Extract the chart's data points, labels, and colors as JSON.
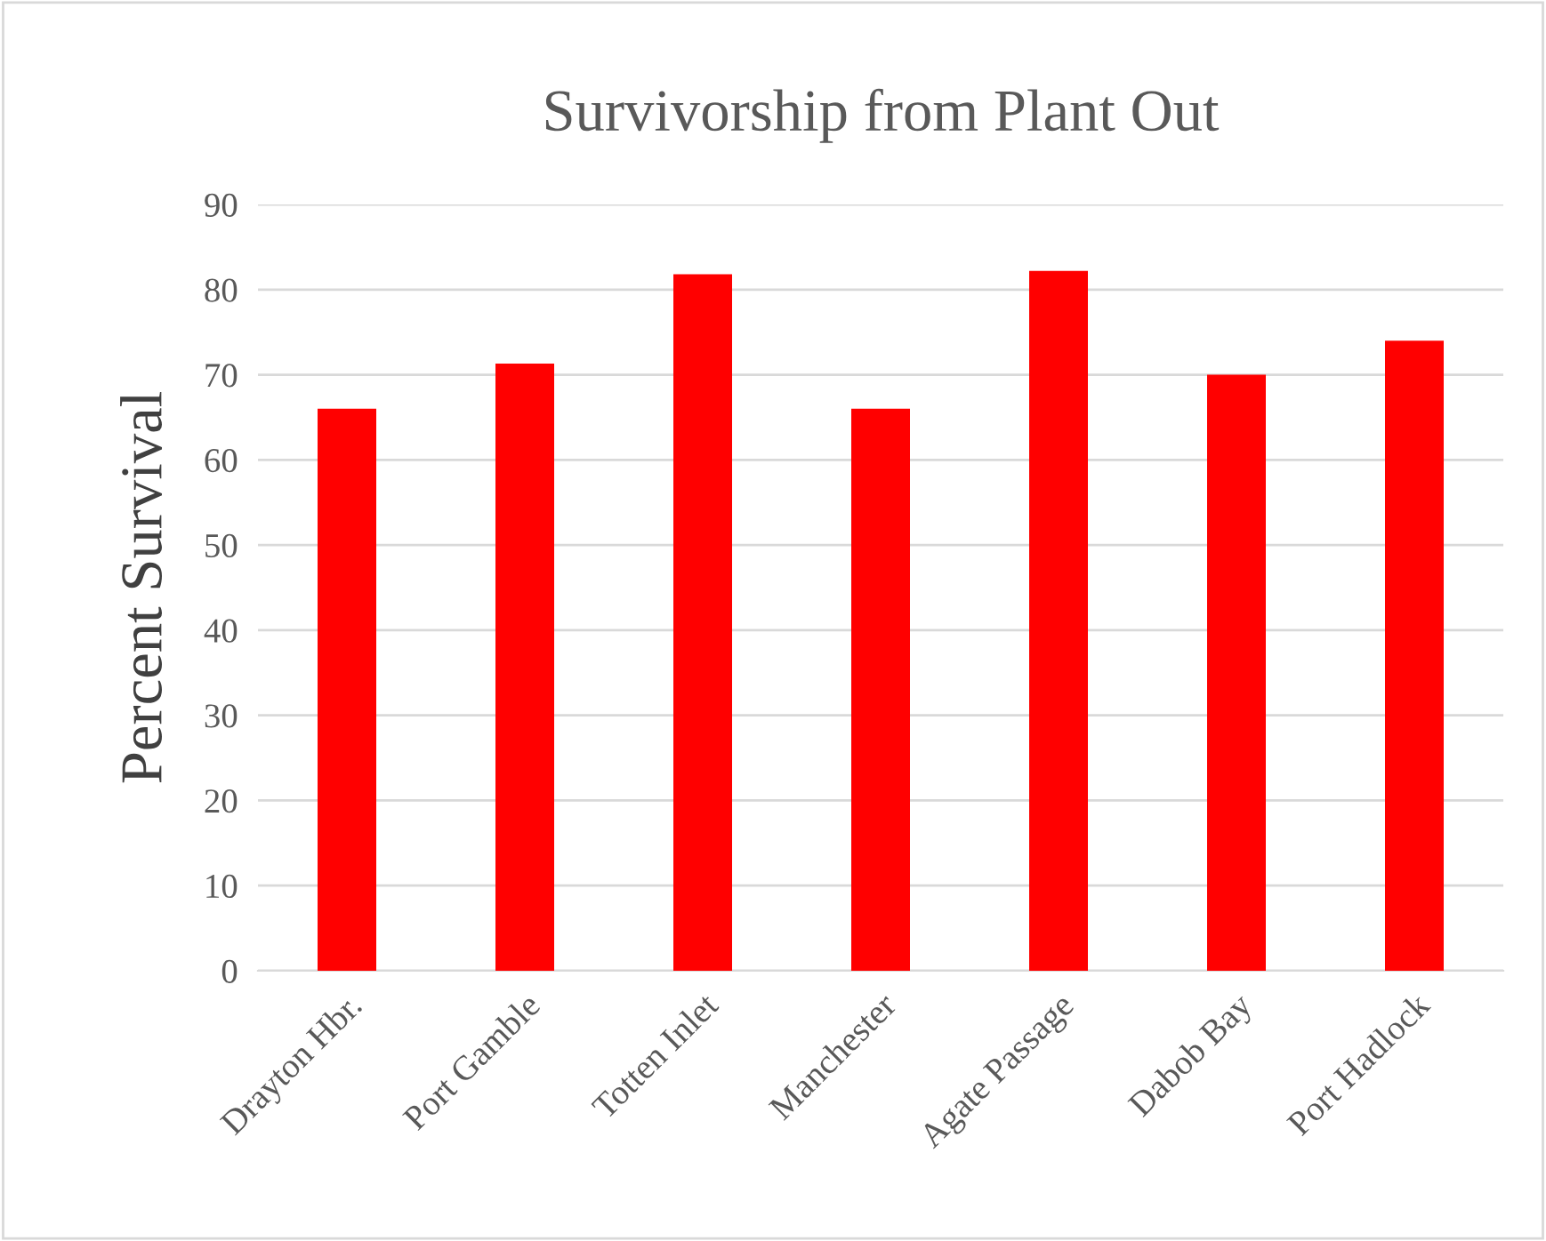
{
  "chart_data": {
    "type": "bar",
    "title": "Survivorship from Plant Out",
    "ylabel": "Percent Survival",
    "categories": [
      "Drayton Hbr.",
      "Port Gamble",
      "Totten Inlet",
      "Manchester",
      "Agate Passage",
      "Dabob Bay",
      "Port Hadlock"
    ],
    "values": [
      66,
      71.3,
      81.8,
      66,
      82.2,
      70,
      74
    ],
    "color": "#ff0000",
    "ylim": [
      0,
      90
    ],
    "yticks": [
      0,
      10,
      20,
      30,
      40,
      50,
      60,
      70,
      80,
      90
    ],
    "grid": "y"
  }
}
